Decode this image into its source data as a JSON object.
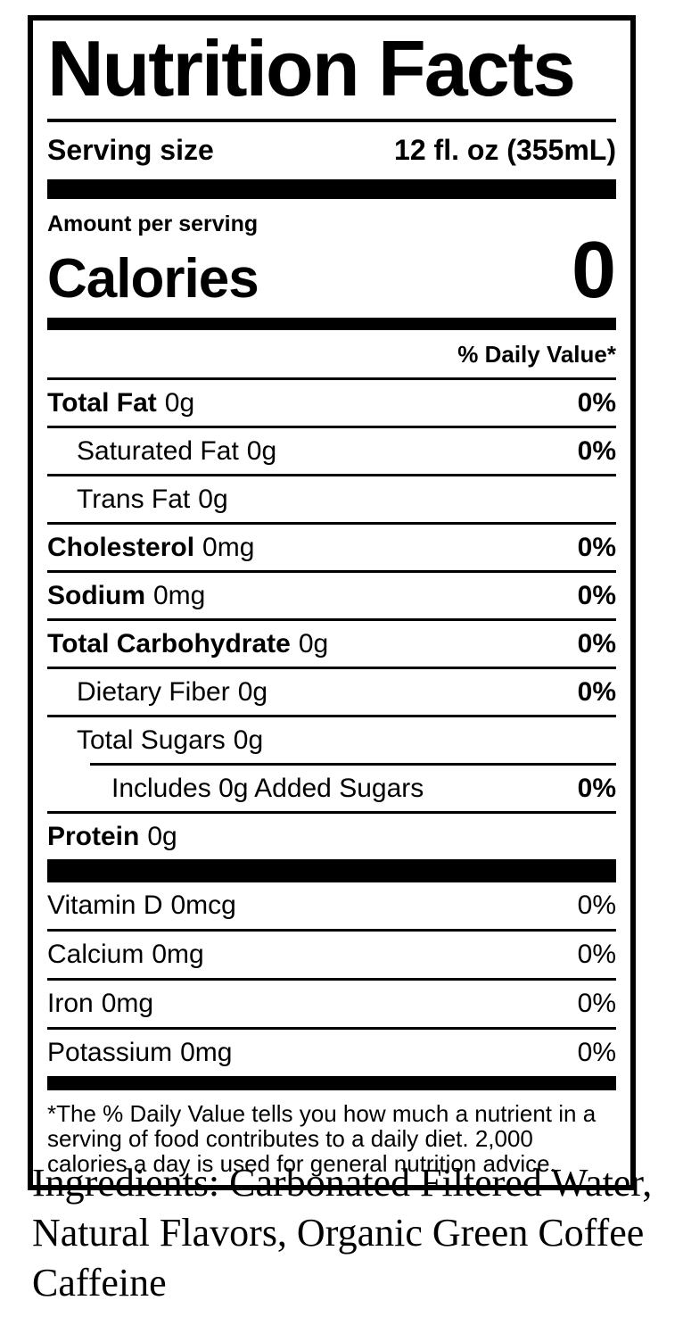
{
  "colors": {
    "text": "#000000",
    "background": "#ffffff"
  },
  "label": {
    "title": "Nutrition Facts",
    "serving_size_label": "Serving size",
    "serving_size_value": "12 fl. oz (355mL)",
    "amount_per_serving": "Amount per serving",
    "calories_label": "Calories",
    "calories_value": "0",
    "daily_value_header": "% Daily Value*",
    "nutrients": [
      {
        "name": "Total Fat",
        "amount": "0g",
        "dv": "0%",
        "bold": true,
        "indent": 0
      },
      {
        "name": "Saturated Fat",
        "amount": "0g",
        "dv": "0%",
        "bold": false,
        "indent": 1
      },
      {
        "name": "Trans Fat",
        "amount": "0g",
        "dv": "",
        "bold": false,
        "indent": 1
      },
      {
        "name": "Cholesterol",
        "amount": "0mg",
        "dv": "0%",
        "bold": true,
        "indent": 0
      },
      {
        "name": "Sodium",
        "amount": "0mg",
        "dv": "0%",
        "bold": true,
        "indent": 0
      },
      {
        "name": "Total Carbohydrate",
        "amount": "0g",
        "dv": "0%",
        "bold": true,
        "indent": 0
      },
      {
        "name": "Dietary Fiber",
        "amount": "0g",
        "dv": "0%",
        "bold": false,
        "indent": 1
      },
      {
        "name": "Total Sugars",
        "amount": "0g",
        "dv": "",
        "bold": false,
        "indent": 1
      },
      {
        "name": "Includes 0g Added Sugars",
        "amount": "",
        "dv": "0%",
        "bold": false,
        "indent": 2
      },
      {
        "name": "Protein",
        "amount": "0g",
        "dv": "",
        "bold": true,
        "indent": 0
      }
    ],
    "vitamins": [
      {
        "name": "Vitamin D",
        "amount": "0mcg",
        "dv": "0%"
      },
      {
        "name": "Calcium",
        "amount": "0mg",
        "dv": "0%"
      },
      {
        "name": "Iron",
        "amount": "0mg",
        "dv": "0%"
      },
      {
        "name": "Potassium",
        "amount": "0mg",
        "dv": "0%"
      }
    ],
    "footnote": "*The % Daily Value tells you how much a nutrient in a serving of food contributes to a daily diet. 2,000 calories a day is used for general nutrition advice."
  },
  "ingredients": {
    "text": "Ingredients: Carbonated Filtered Water, Natural Flavors, Organic Green Coffee Caffeine"
  }
}
